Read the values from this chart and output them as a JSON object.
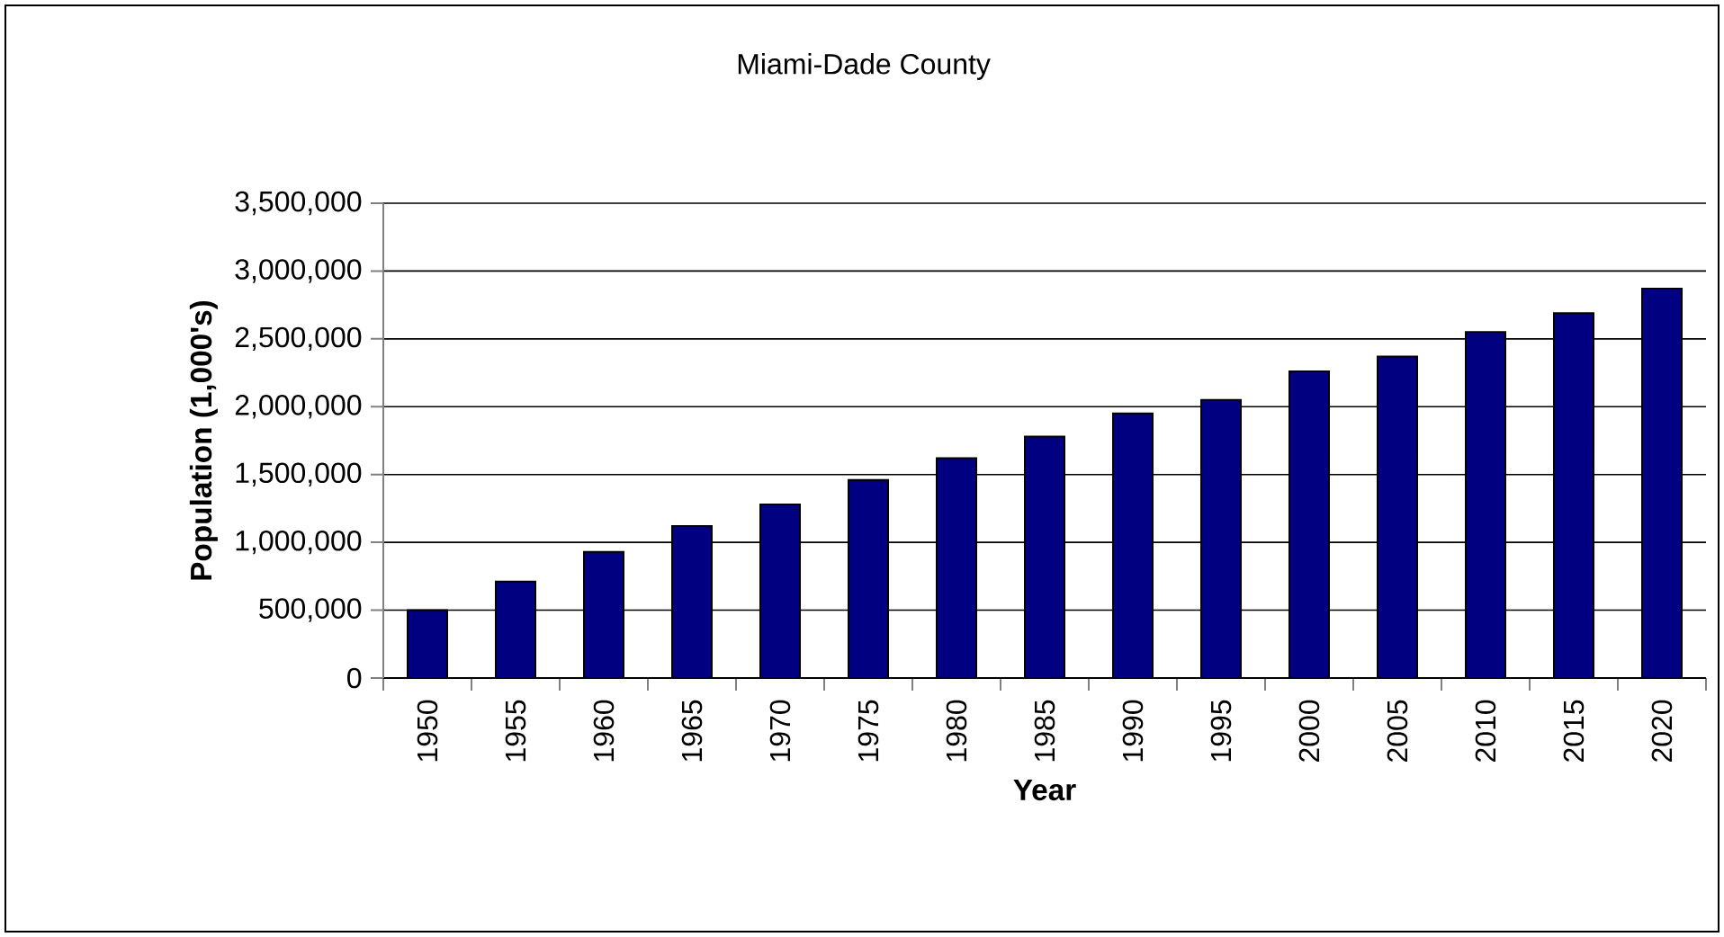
{
  "chart_data": {
    "type": "bar",
    "title": "Miami-Dade County",
    "xlabel": "Year",
    "ylabel": "Population (1,000's)",
    "categories": [
      "1950",
      "1955",
      "1960",
      "1965",
      "1970",
      "1975",
      "1980",
      "1985",
      "1990",
      "1995",
      "2000",
      "2005",
      "2010",
      "2015",
      "2020"
    ],
    "values": [
      500000,
      710000,
      930000,
      1120000,
      1280000,
      1460000,
      1620000,
      1780000,
      1950000,
      2050000,
      2260000,
      2370000,
      2550000,
      2690000,
      2870000
    ],
    "color": "#000080",
    "ylim": [
      0,
      3500000
    ],
    "yticks": [
      0,
      {
        "value": 500000,
        "label": "500,000"
      },
      {
        "value": 1000000,
        "label": "1,000,000"
      },
      {
        "value": 1500000,
        "label": "1,500,000"
      },
      {
        "value": 2000000,
        "label": "2,000,000"
      },
      {
        "value": 2500000,
        "label": "2,500,000"
      },
      {
        "value": 3000000,
        "label": "3,000,000"
      },
      {
        "value": 3500000,
        "label": "3,500,000"
      }
    ],
    "grid": "y"
  }
}
